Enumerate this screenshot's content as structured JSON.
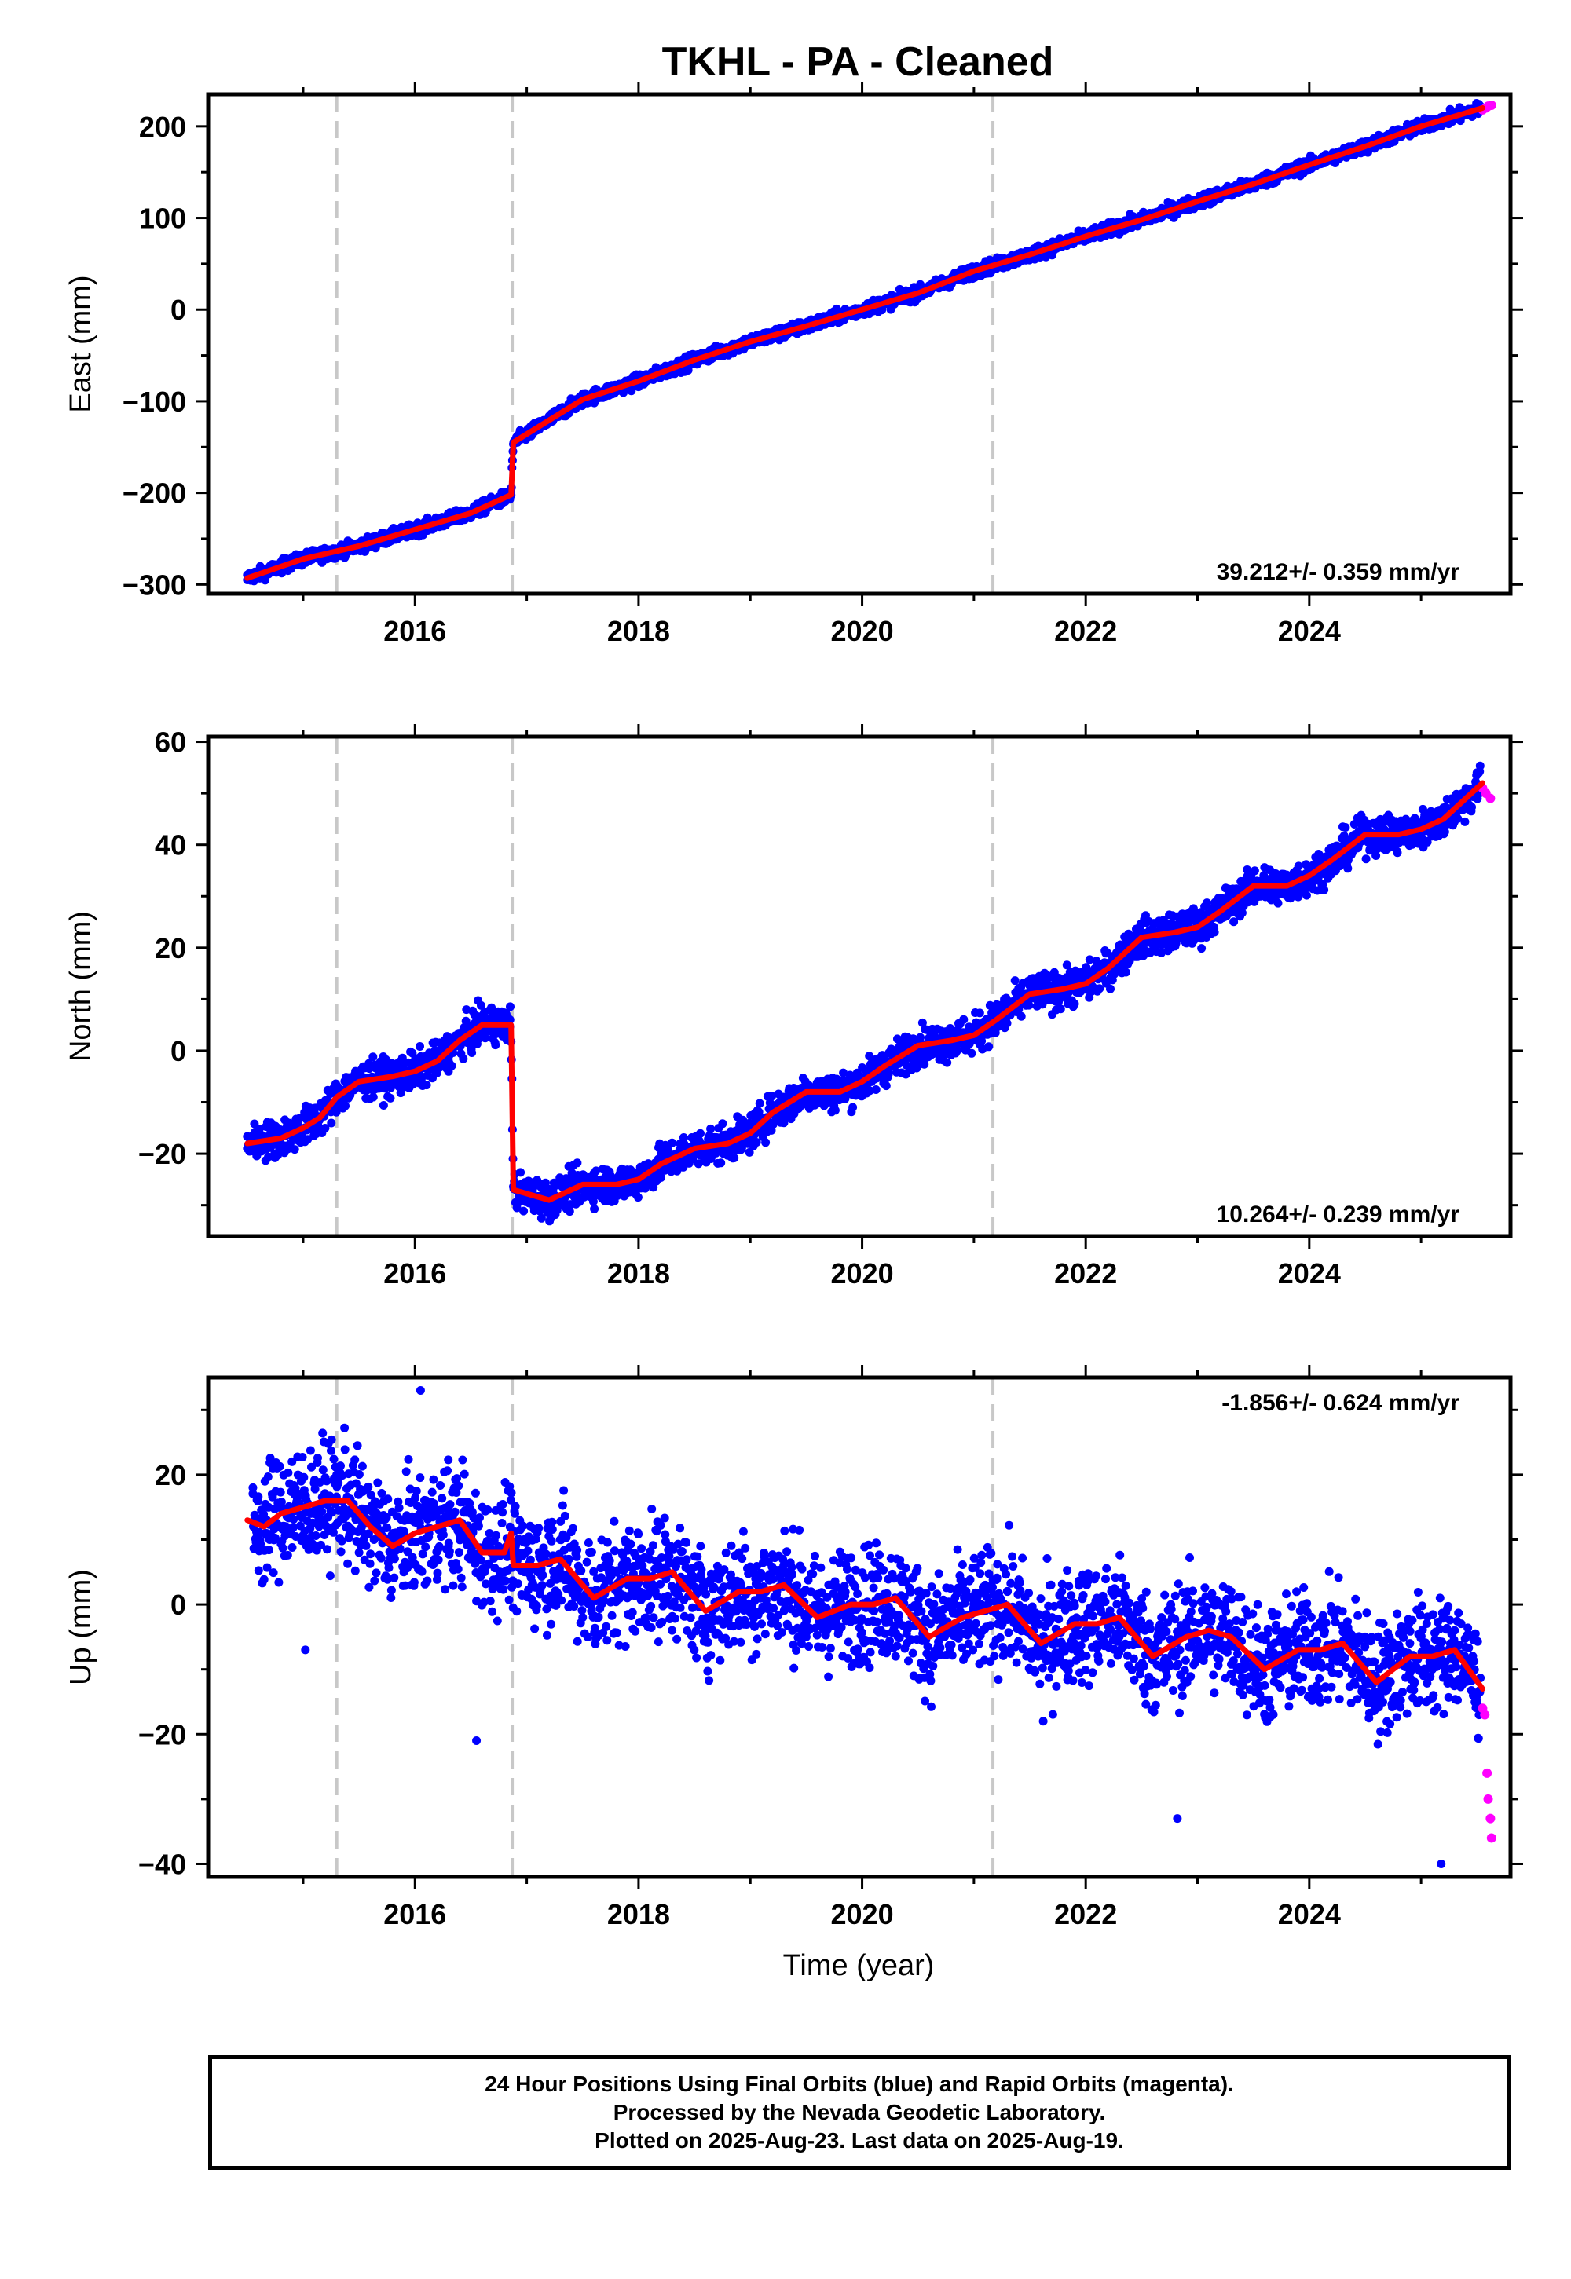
{
  "title": "TKHL  - PA - Cleaned",
  "xlabel": "Time (year)",
  "footer": {
    "line1": "24 Hour Positions Using Final Orbits (blue) and Rapid Orbits (magenta).",
    "line2": "Processed by the Nevada Geodetic Laboratory.",
    "line3": "Plotted on 2025-Aug-23. Last data on 2025-Aug-19."
  },
  "colors": {
    "final_points": "#0000ff",
    "rapid_points": "#ff00ff",
    "model_line": "#ff0000",
    "event_lines": "#c8c8c8"
  },
  "chart_data": [
    {
      "type": "scatter",
      "component": "East",
      "ylabel": "East (mm)",
      "rate_label": "39.212+/- 0.359 mm/yr",
      "xlim": [
        2014.15,
        2025.8
      ],
      "ylim": [
        -310,
        235
      ],
      "yticks": [
        -300,
        -200,
        -100,
        0,
        100,
        200
      ],
      "ytick_labels": [
        "−300",
        "−200",
        "−100",
        "0",
        "100",
        "200"
      ],
      "xticks": [
        2016,
        2018,
        2020,
        2022,
        2024
      ],
      "xtick_labels": [
        "2016",
        "2018",
        "2020",
        "2022",
        "2024"
      ],
      "event_lines": [
        2015.3,
        2016.87,
        2021.17
      ],
      "grid": false,
      "series": [
        {
          "role": "model",
          "x": [
            2014.5,
            2015.0,
            2015.5,
            2016.0,
            2016.5,
            2016.86,
            2016.88,
            2017.5,
            2018.0,
            2018.5,
            2019.0,
            2019.5,
            2020.0,
            2020.5,
            2021.0,
            2021.5,
            2022.0,
            2022.5,
            2023.0,
            2023.5,
            2024.0,
            2024.5,
            2025.0,
            2025.55
          ],
          "y": [
            -293,
            -272,
            -258,
            -240,
            -222,
            -202,
            -145,
            -98,
            -78,
            -55,
            -35,
            -18,
            0,
            18,
            42,
            60,
            80,
            98,
            118,
            137,
            158,
            178,
            200,
            220
          ]
        },
        {
          "role": "final",
          "x": [
            2014.5,
            2014.7,
            2015.0,
            2015.3,
            2015.6,
            2016.0,
            2016.3,
            2016.6,
            2016.85,
            2016.9,
            2017.2,
            2017.6,
            2018.0,
            2018.4,
            2018.8,
            2019.2,
            2019.6,
            2020.0,
            2020.4,
            2020.8,
            2021.2,
            2021.6,
            2022.0,
            2022.4,
            2022.8,
            2023.2,
            2023.6,
            2024.0,
            2024.4,
            2024.8,
            2025.2,
            2025.5
          ],
          "y": [
            -295,
            -285,
            -272,
            -265,
            -255,
            -240,
            -230,
            -218,
            -205,
            -142,
            -120,
            -95,
            -78,
            -62,
            -45,
            -32,
            -15,
            0,
            12,
            30,
            45,
            58,
            78,
            90,
            105,
            122,
            138,
            158,
            172,
            190,
            205,
            215
          ]
        },
        {
          "role": "rapid",
          "x": [
            2025.55,
            2025.58,
            2025.6,
            2025.63
          ],
          "y": [
            218,
            220,
            222,
            223
          ]
        }
      ]
    },
    {
      "type": "scatter",
      "component": "North",
      "ylabel": "North (mm)",
      "rate_label": "10.264+/- 0.239 mm/yr",
      "xlim": [
        2014.15,
        2025.8
      ],
      "ylim": [
        -36,
        61
      ],
      "yticks": [
        -20,
        0,
        20,
        40,
        60
      ],
      "ytick_labels": [
        "−20",
        "0",
        "20",
        "40",
        "60"
      ],
      "xticks": [
        2016,
        2018,
        2020,
        2022,
        2024
      ],
      "xtick_labels": [
        "2016",
        "2018",
        "2020",
        "2022",
        "2024"
      ],
      "event_lines": [
        2015.3,
        2016.87,
        2021.17
      ],
      "grid": false,
      "series": [
        {
          "role": "model",
          "x": [
            2014.5,
            2014.8,
            2015.0,
            2015.15,
            2015.3,
            2015.5,
            2015.8,
            2016.0,
            2016.2,
            2016.4,
            2016.6,
            2016.86,
            2016.88,
            2017.2,
            2017.5,
            2017.8,
            2018.0,
            2018.2,
            2018.5,
            2018.8,
            2019.0,
            2019.2,
            2019.5,
            2019.8,
            2020.0,
            2020.2,
            2020.5,
            2020.8,
            2021.0,
            2021.2,
            2021.5,
            2021.8,
            2022.0,
            2022.2,
            2022.5,
            2022.8,
            2023.0,
            2023.2,
            2023.5,
            2023.8,
            2024.0,
            2024.2,
            2024.5,
            2024.8,
            2025.0,
            2025.2,
            2025.55
          ],
          "y": [
            -18,
            -17,
            -15,
            -13,
            -9,
            -6,
            -5,
            -4,
            -2,
            2,
            5,
            5,
            -27,
            -29,
            -26,
            -26,
            -25,
            -22,
            -19,
            -18,
            -16,
            -12,
            -8,
            -8,
            -6,
            -3,
            1,
            2,
            3,
            6,
            11,
            12,
            13,
            16,
            22,
            23,
            24,
            27,
            32,
            32,
            34,
            37,
            42,
            42,
            43,
            45,
            52
          ]
        },
        {
          "role": "final",
          "x": [
            2014.5,
            2014.8,
            2015.1,
            2015.4,
            2015.7,
            2016.0,
            2016.3,
            2016.5,
            2016.7,
            2016.85,
            2016.95,
            2017.2,
            2017.5,
            2017.8,
            2018.1,
            2018.4,
            2018.7,
            2019.0,
            2019.3,
            2019.6,
            2019.9,
            2020.2,
            2020.5,
            2020.8,
            2021.1,
            2021.4,
            2021.7,
            2022.0,
            2022.3,
            2022.6,
            2022.9,
            2023.2,
            2023.5,
            2023.8,
            2024.1,
            2024.4,
            2024.7,
            2025.0,
            2025.3,
            2025.5
          ],
          "y": [
            -19,
            -18,
            -15,
            -7,
            -5,
            -5,
            -2,
            4,
            7,
            6,
            -28,
            -31,
            -27,
            -26,
            -26,
            -21,
            -18,
            -17,
            -14,
            -9,
            -8,
            -6,
            1,
            2,
            4,
            8,
            12,
            12,
            16,
            23,
            22,
            26,
            32,
            32,
            35,
            40,
            42,
            43,
            48,
            54
          ]
        },
        {
          "role": "rapid",
          "x": [
            2025.55,
            2025.58,
            2025.62
          ],
          "y": [
            51,
            50,
            49
          ]
        }
      ]
    },
    {
      "type": "scatter",
      "component": "Up",
      "ylabel": "Up (mm)",
      "rate_label": "-1.856+/- 0.624 mm/yr",
      "xlim": [
        2014.15,
        2025.8
      ],
      "ylim": [
        -42,
        35
      ],
      "yticks": [
        -40,
        -20,
        0,
        20
      ],
      "ytick_labels": [
        "−40",
        "−20",
        "0",
        "20"
      ],
      "xticks": [
        2016,
        2018,
        2020,
        2022,
        2024
      ],
      "xtick_labels": [
        "2016",
        "2018",
        "2020",
        "2022",
        "2024"
      ],
      "event_lines": [
        2015.3,
        2016.87,
        2021.17
      ],
      "grid": false,
      "series": [
        {
          "role": "model",
          "x": [
            2014.5,
            2014.65,
            2014.8,
            2015.0,
            2015.2,
            2015.4,
            2015.6,
            2015.8,
            2016.0,
            2016.2,
            2016.4,
            2016.6,
            2016.8,
            2016.86,
            2016.88,
            2017.1,
            2017.3,
            2017.6,
            2017.9,
            2018.1,
            2018.3,
            2018.6,
            2018.9,
            2019.1,
            2019.3,
            2019.6,
            2019.9,
            2020.1,
            2020.3,
            2020.6,
            2020.9,
            2021.1,
            2021.3,
            2021.6,
            2021.9,
            2022.1,
            2022.3,
            2022.6,
            2022.9,
            2023.1,
            2023.3,
            2023.6,
            2023.9,
            2024.1,
            2024.3,
            2024.6,
            2024.9,
            2025.1,
            2025.3,
            2025.55
          ],
          "y": [
            13,
            12,
            14,
            15,
            16,
            16,
            12,
            9,
            11,
            12,
            13,
            8,
            8,
            11,
            6,
            6,
            7,
            1,
            4,
            4,
            5,
            -1,
            2,
            2,
            3,
            -2,
            0,
            0,
            1,
            -5,
            -2,
            -1,
            0,
            -6,
            -3,
            -3,
            -2,
            -8,
            -5,
            -4,
            -5,
            -10,
            -7,
            -7,
            -6,
            -12,
            -8,
            -8,
            -7,
            -13
          ]
        },
        {
          "role": "final",
          "x": [
            2014.55,
            2014.7,
            2014.9,
            2015.1,
            2015.3,
            2015.5,
            2015.7,
            2015.9,
            2016.1,
            2016.3,
            2016.5,
            2016.7,
            2016.9,
            2017.1,
            2017.3,
            2017.5,
            2017.7,
            2017.9,
            2018.1,
            2018.3,
            2018.5,
            2018.7,
            2018.9,
            2019.1,
            2019.3,
            2019.5,
            2019.7,
            2019.9,
            2020.1,
            2020.3,
            2020.5,
            2020.7,
            2020.9,
            2021.1,
            2021.3,
            2021.5,
            2021.7,
            2021.9,
            2022.1,
            2022.3,
            2022.5,
            2022.7,
            2022.9,
            2023.1,
            2023.3,
            2023.5,
            2023.7,
            2023.9,
            2024.1,
            2024.3,
            2024.5,
            2024.7,
            2024.9,
            2025.1,
            2025.3,
            2025.5,
            2016.05,
            2016.55,
            2015.02,
            2021.62,
            2022.82,
            2025.18
          ],
          "y": [
            18,
            10,
            22,
            14,
            20,
            8,
            13,
            5,
            16,
            9,
            14,
            3,
            9,
            5,
            10,
            -2,
            6,
            1,
            7,
            -4,
            4,
            0,
            8,
            -3,
            5,
            -5,
            3,
            -2,
            4,
            -8,
            2,
            -4,
            3,
            -1,
            2,
            -10,
            -2,
            -6,
            1,
            -5,
            0,
            -12,
            -3,
            -7,
            2,
            -9,
            -4,
            -11,
            -3,
            -8,
            -5,
            -13,
            -6,
            -10,
            -4,
            -15,
            33,
            -21,
            -7,
            -18,
            -33,
            -40
          ]
        },
        {
          "role": "rapid",
          "x": [
            2025.55,
            2025.57,
            2025.59,
            2025.6,
            2025.62,
            2025.63
          ],
          "y": [
            -16,
            -17,
            -26,
            -30,
            -33,
            -36
          ]
        }
      ]
    }
  ]
}
